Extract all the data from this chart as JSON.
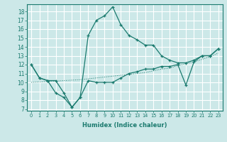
{
  "xlabel": "Humidex (Indice chaleur)",
  "bg_color": "#cce8e8",
  "grid_color": "#ffffff",
  "line_color": "#1a7a6e",
  "xlim": [
    -0.5,
    23.5
  ],
  "ylim": [
    6.8,
    18.8
  ],
  "xticks": [
    0,
    1,
    2,
    3,
    4,
    5,
    6,
    7,
    8,
    9,
    10,
    11,
    12,
    13,
    14,
    15,
    16,
    17,
    18,
    19,
    20,
    21,
    22,
    23
  ],
  "yticks": [
    7,
    8,
    9,
    10,
    11,
    12,
    13,
    14,
    15,
    16,
    17,
    18
  ],
  "peak_x": [
    0,
    1,
    2,
    3,
    4,
    5,
    6,
    7,
    8,
    9,
    10,
    11,
    12,
    13,
    14,
    15,
    16,
    17,
    18,
    19,
    20,
    21,
    22,
    23
  ],
  "peak_y": [
    12.0,
    10.5,
    10.2,
    8.8,
    8.3,
    7.2,
    8.3,
    15.3,
    17.0,
    17.5,
    18.5,
    16.5,
    15.3,
    14.8,
    14.2,
    14.2,
    13.0,
    12.5,
    12.2,
    12.2,
    12.5,
    13.0,
    13.0,
    13.8
  ],
  "lower_x": [
    0,
    1,
    2,
    3,
    4,
    5,
    6,
    7,
    8,
    9,
    10,
    11,
    12,
    13,
    14,
    15,
    16,
    17,
    18,
    19,
    20,
    21,
    22,
    23
  ],
  "lower_y": [
    12.0,
    10.5,
    10.2,
    10.2,
    8.8,
    7.2,
    8.3,
    10.2,
    10.0,
    10.0,
    10.0,
    10.5,
    11.0,
    11.2,
    11.5,
    11.5,
    11.8,
    11.8,
    12.0,
    9.7,
    12.3,
    13.0,
    13.0,
    13.8
  ],
  "diag_x": [
    0,
    1,
    2,
    3,
    4,
    5,
    6,
    7,
    8,
    9,
    10,
    11,
    12,
    13,
    14,
    15,
    16,
    17,
    18,
    19,
    20,
    21,
    22,
    23
  ],
  "diag_y": [
    10.0,
    10.05,
    10.1,
    10.15,
    10.2,
    10.25,
    10.3,
    10.4,
    10.5,
    10.6,
    10.7,
    10.8,
    10.9,
    11.0,
    11.1,
    11.3,
    11.5,
    11.6,
    11.9,
    12.1,
    12.3,
    12.6,
    12.9,
    13.3
  ]
}
